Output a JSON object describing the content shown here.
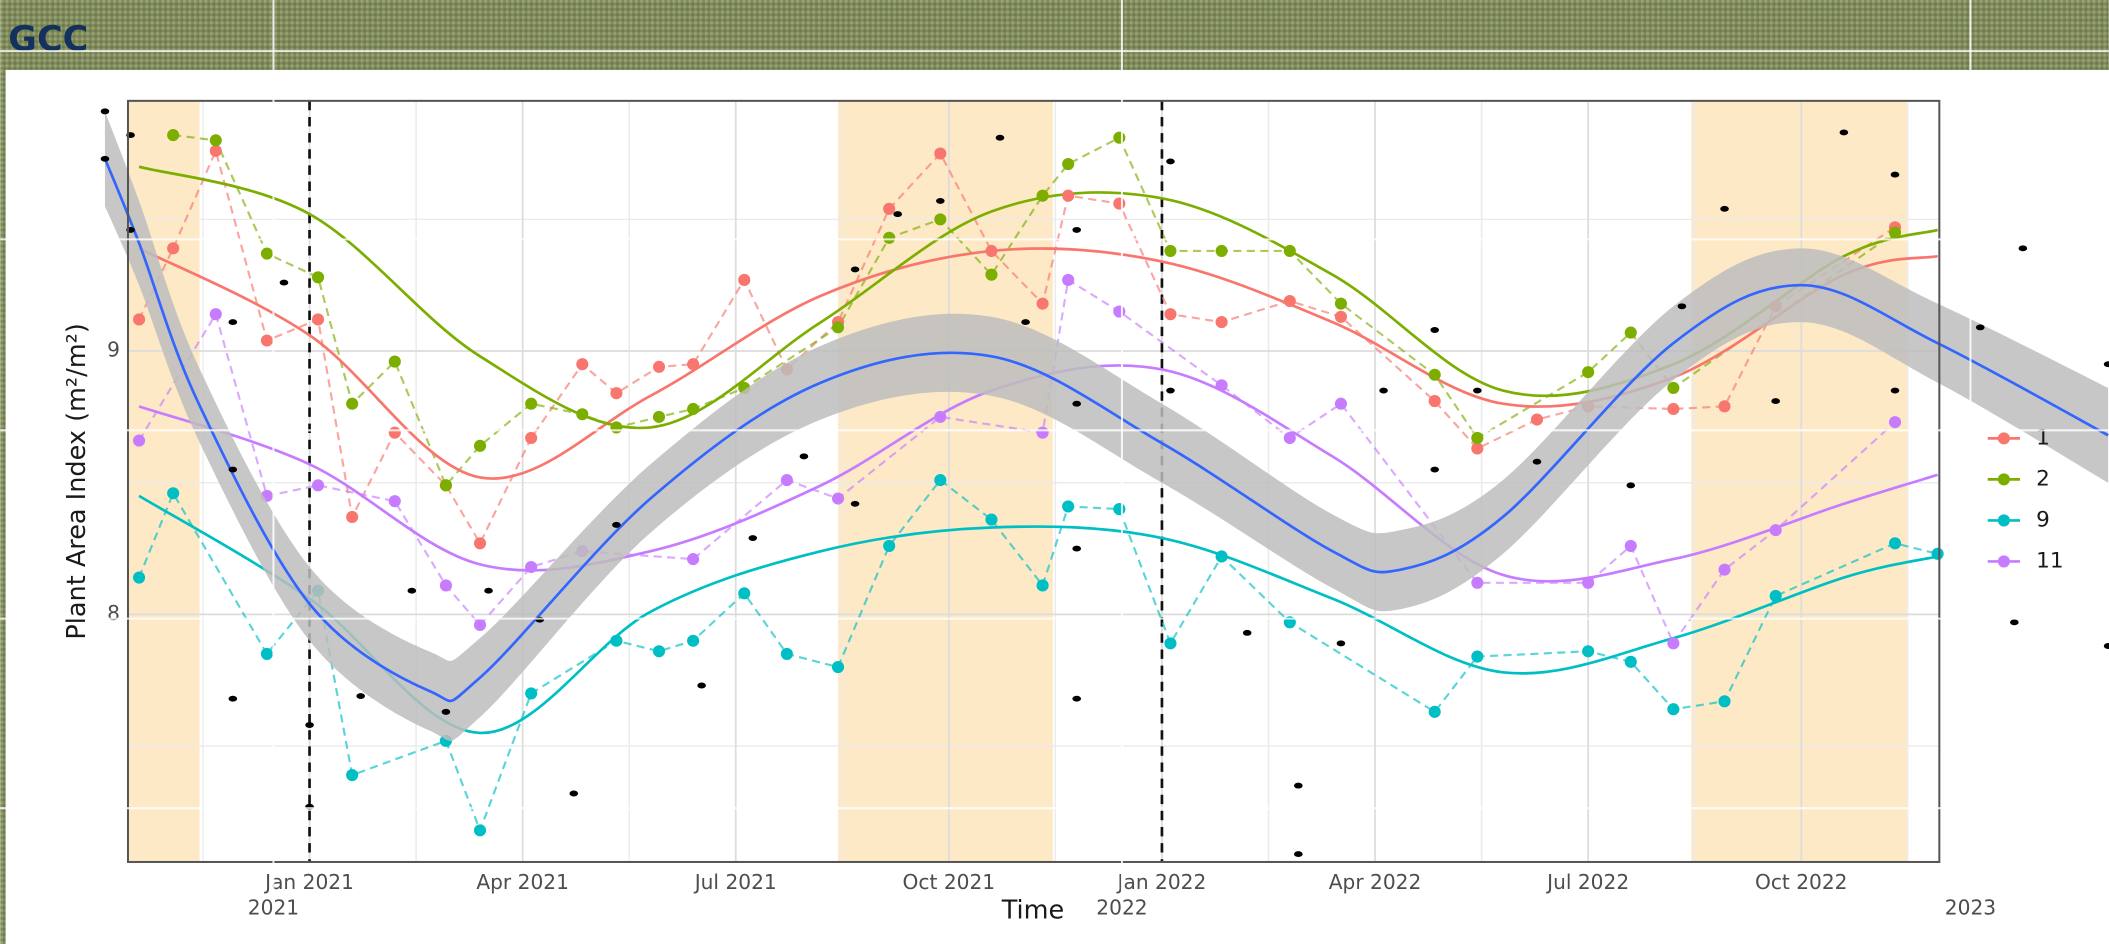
{
  "chart_data": {
    "type": "line",
    "title": "GCC",
    "xlabel": "Time",
    "ylabel": "Plant Area Index (m²/m²)",
    "xlim": [
      2020.787,
      2022.912
    ],
    "ylim": [
      7.06,
      9.95
    ],
    "xticks": [
      {
        "value": 2021.0,
        "label": "Jan 2021"
      },
      {
        "value": 2021.25,
        "label": "Apr 2021"
      },
      {
        "value": 2021.5,
        "label": "Jul 2021"
      },
      {
        "value": 2021.75,
        "label": "Oct 2021"
      },
      {
        "value": 2022.0,
        "label": "Jan 2022"
      },
      {
        "value": 2022.25,
        "label": "Apr 2022"
      },
      {
        "value": 2022.5,
        "label": "Jul 2022"
      },
      {
        "value": 2022.75,
        "label": "Oct 2022"
      }
    ],
    "yticks": [
      8,
      9
    ],
    "x2lim": [
      2020.678,
      2023.163
    ],
    "x2ticks": [
      {
        "value": 2021,
        "label": "2021"
      },
      {
        "value": 2022,
        "label": "2022"
      },
      {
        "value": 2023,
        "label": "2023"
      }
    ],
    "grid": true,
    "legend": "right",
    "shaded": [
      [
        2020.787,
        2020.871
      ],
      [
        2021.62,
        2021.872
      ],
      [
        2022.621,
        2022.874
      ]
    ],
    "shade_color": "#fde9c6",
    "vlines": [
      2021.0,
      2022.0
    ],
    "trend_x": [
      2020.8,
      2021.0,
      2021.2,
      2021.4,
      2021.6,
      2021.8,
      2022.0,
      2022.2,
      2022.4,
      2022.6,
      2022.8,
      2022.91
    ],
    "series": [
      {
        "name": "1",
        "color": "#f8766d",
        "x": [
          2020.8,
          2020.84,
          2020.89,
          2020.95,
          2021.01,
          2021.05,
          2021.1,
          2021.16,
          2021.2,
          2021.26,
          2021.32,
          2021.36,
          2021.41,
          2021.45,
          2021.51,
          2021.56,
          2021.62,
          2021.68,
          2021.74,
          2021.8,
          2021.86,
          2021.89,
          2021.95,
          2022.01,
          2022.07,
          2022.15,
          2022.21,
          2022.32,
          2022.37,
          2022.44,
          2022.5,
          2022.6,
          2022.66,
          2022.72,
          2022.86
        ],
        "values": [
          9.12,
          9.39,
          9.76,
          9.04,
          9.12,
          8.37,
          8.69,
          8.49,
          8.27,
          8.67,
          8.95,
          8.84,
          8.94,
          8.95,
          9.27,
          8.93,
          9.11,
          9.54,
          9.75,
          9.38,
          9.18,
          9.59,
          9.56,
          9.14,
          9.11,
          9.19,
          9.13,
          8.81,
          8.63,
          8.74,
          8.79,
          8.78,
          8.79,
          9.17,
          9.47
        ],
        "trend": [
          9.39,
          9.06,
          8.52,
          8.83,
          9.21,
          9.38,
          9.34,
          9.11,
          8.8,
          8.9,
          9.29,
          9.36
        ]
      },
      {
        "name": "2",
        "color": "#7cae00",
        "x": [
          2020.84,
          2020.89,
          2020.95,
          2021.01,
          2021.05,
          2021.1,
          2021.16,
          2021.2,
          2021.26,
          2021.32,
          2021.36,
          2021.41,
          2021.45,
          2021.51,
          2021.62,
          2021.68,
          2021.74,
          2021.8,
          2021.86,
          2021.89,
          2021.95,
          2022.01,
          2022.07,
          2022.15,
          2022.21,
          2022.32,
          2022.37,
          2022.5,
          2022.55,
          2022.6,
          2022.86
        ],
        "values": [
          9.82,
          9.8,
          9.37,
          9.28,
          8.8,
          8.96,
          8.49,
          8.64,
          8.8,
          8.76,
          8.71,
          8.75,
          8.78,
          8.86,
          9.09,
          9.43,
          9.5,
          9.29,
          9.59,
          9.71,
          9.81,
          9.38,
          9.38,
          9.38,
          9.18,
          8.91,
          8.67,
          8.92,
          9.07,
          8.86,
          9.45
        ],
        "trend": [
          9.7,
          9.52,
          8.98,
          8.71,
          9.11,
          9.53,
          9.58,
          9.29,
          8.85,
          8.95,
          9.36,
          9.46
        ]
      },
      {
        "name": "9",
        "color": "#00bfc4",
        "x": [
          2020.8,
          2020.84,
          2020.95,
          2021.01,
          2021.05,
          2021.16,
          2021.2,
          2021.26,
          2021.36,
          2021.41,
          2021.45,
          2021.51,
          2021.56,
          2021.62,
          2021.68,
          2021.74,
          2021.8,
          2021.86,
          2021.89,
          2021.95,
          2022.01,
          2022.07,
          2022.15,
          2022.32,
          2022.37,
          2022.5,
          2022.55,
          2022.6,
          2022.66,
          2022.72,
          2022.86,
          2022.91
        ],
        "values": [
          8.14,
          8.46,
          7.85,
          8.09,
          7.39,
          7.52,
          7.18,
          7.7,
          7.9,
          7.86,
          7.9,
          8.08,
          7.85,
          7.8,
          8.26,
          8.51,
          8.36,
          8.11,
          8.41,
          8.4,
          7.89,
          8.22,
          7.97,
          7.63,
          7.84,
          7.86,
          7.82,
          7.64,
          7.67,
          8.07,
          8.27,
          8.23
        ],
        "trend": [
          8.45,
          8.06,
          7.55,
          8.01,
          8.24,
          8.33,
          8.29,
          8.06,
          7.78,
          7.91,
          8.14,
          8.22
        ]
      },
      {
        "name": "11",
        "color": "#c77cff",
        "x": [
          2020.8,
          2020.89,
          2020.95,
          2021.01,
          2021.1,
          2021.16,
          2021.2,
          2021.26,
          2021.32,
          2021.45,
          2021.56,
          2021.62,
          2021.74,
          2021.86,
          2021.89,
          2021.95,
          2022.07,
          2022.15,
          2022.21,
          2022.37,
          2022.5,
          2022.55,
          2022.6,
          2022.66,
          2022.72,
          2022.86
        ],
        "values": [
          8.66,
          9.14,
          8.45,
          8.49,
          8.43,
          8.11,
          7.96,
          8.18,
          8.24,
          8.21,
          8.51,
          8.44,
          8.75,
          8.69,
          9.27,
          9.15,
          8.87,
          8.67,
          8.8,
          8.12,
          8.12,
          8.26,
          7.89,
          8.17,
          8.32,
          8.73
        ],
        "trend": [
          8.79,
          8.57,
          8.19,
          8.24,
          8.49,
          8.85,
          8.93,
          8.6,
          8.15,
          8.21,
          8.42,
          8.53
        ]
      }
    ],
    "smooth": {
      "color": "#3366ff",
      "band_color": "#bdbdbd",
      "x": [
        2020.76,
        2020.8,
        2020.87,
        2021.0,
        2021.14,
        2021.2,
        2021.4,
        2021.6,
        2021.8,
        2022.0,
        2022.2,
        2022.28,
        2022.4,
        2022.6,
        2022.75,
        2022.91,
        2023.11
      ],
      "values": [
        9.73,
        9.41,
        8.8,
        8.04,
        7.71,
        7.76,
        8.44,
        8.88,
        8.98,
        8.65,
        8.24,
        8.17,
        8.37,
        9.03,
        9.25,
        9.03,
        8.68
      ],
      "lower": [
        9.55,
        9.25,
        8.66,
        7.9,
        7.56,
        7.61,
        8.31,
        8.74,
        8.83,
        8.5,
        8.1,
        8.02,
        8.23,
        8.89,
        9.11,
        8.88,
        8.5
      ],
      "upper": [
        9.91,
        9.57,
        8.94,
        8.18,
        7.86,
        7.91,
        8.57,
        9.02,
        9.13,
        8.8,
        8.38,
        8.32,
        8.51,
        9.17,
        9.39,
        9.18,
        8.86
      ]
    },
    "obs": {
      "color": "#000000",
      "x": [
        2020.76,
        2020.76,
        2020.79,
        2020.79,
        2020.91,
        2020.91,
        2020.91,
        2020.97,
        2021.0,
        2021.0,
        2021.06,
        2021.12,
        2021.16,
        2021.21,
        2021.27,
        2021.31,
        2021.36,
        2021.46,
        2021.52,
        2021.58,
        2021.64,
        2021.64,
        2021.69,
        2021.74,
        2021.81,
        2021.84,
        2021.9,
        2021.9,
        2021.9,
        2021.9,
        2022.01,
        2022.01,
        2022.1,
        2022.16,
        2022.16,
        2022.21,
        2022.26,
        2022.32,
        2022.32,
        2022.37,
        2022.44,
        2022.55,
        2022.61,
        2022.66,
        2022.72,
        2022.8,
        2022.86,
        2022.86,
        2022.96,
        2023.01,
        2023.11,
        2023.0,
        2023.11
      ],
      "values": [
        9.91,
        9.73,
        9.82,
        9.46,
        9.11,
        8.55,
        7.68,
        9.26,
        7.58,
        7.27,
        7.69,
        8.09,
        7.63,
        8.09,
        7.98,
        7.32,
        8.34,
        7.73,
        8.29,
        8.6,
        9.31,
        8.42,
        9.52,
        9.57,
        9.81,
        9.11,
        9.46,
        8.8,
        8.25,
        7.68,
        9.72,
        8.85,
        7.93,
        7.35,
        7.09,
        7.89,
        8.85,
        9.08,
        8.55,
        8.85,
        8.58,
        8.49,
        9.17,
        9.54,
        8.81,
        9.83,
        9.67,
        8.85,
        9.09,
        9.39,
        8.95,
        7.97,
        7.88
      ]
    }
  }
}
